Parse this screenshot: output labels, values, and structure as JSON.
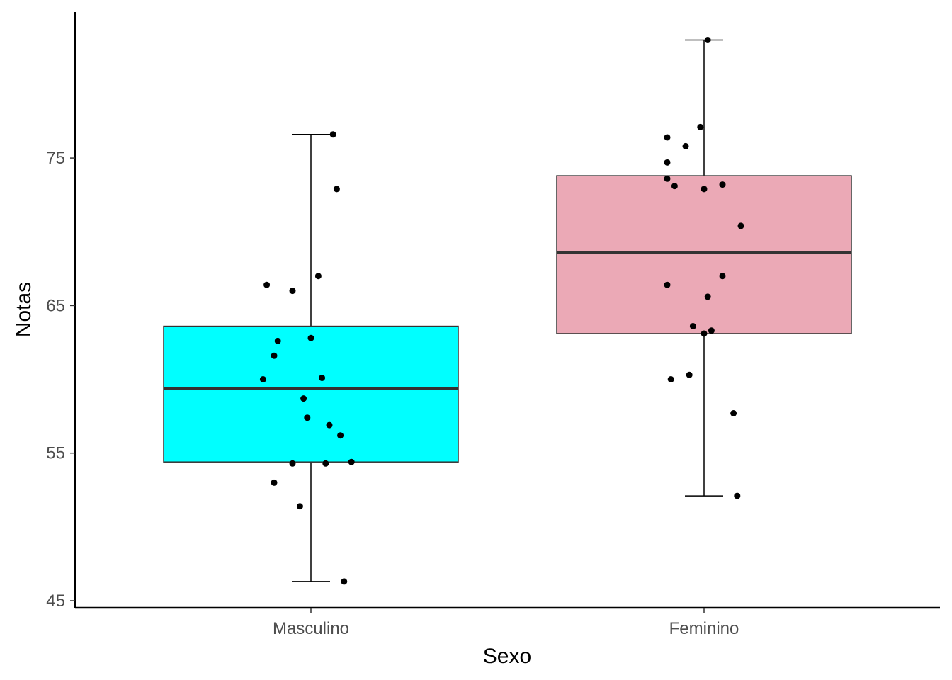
{
  "chart_data": {
    "type": "boxplot",
    "xlabel": "Sexo",
    "ylabel": "Notas",
    "ylim": [
      45,
      85
    ],
    "yticks": [
      45,
      55,
      65,
      75
    ],
    "grid": false,
    "legend": "none",
    "categories": [
      "Masculino",
      "Feminino"
    ],
    "boxes": [
      {
        "category": "Masculino",
        "fill": "#00FFFF",
        "q1": 54.4,
        "median": 59.4,
        "q3": 63.6,
        "whisker_low": 46.3,
        "whisker_high": 76.6,
        "points": [
          {
            "x": 0.06,
            "y": 76.6
          },
          {
            "x": 0.07,
            "y": 72.9
          },
          {
            "x": -0.12,
            "y": 66.4
          },
          {
            "x": 0.02,
            "y": 67.0
          },
          {
            "x": -0.05,
            "y": 66.0
          },
          {
            "x": 0.0,
            "y": 62.8
          },
          {
            "x": -0.09,
            "y": 62.6
          },
          {
            "x": -0.1,
            "y": 61.6
          },
          {
            "x": -0.13,
            "y": 60.0
          },
          {
            "x": 0.03,
            "y": 60.1
          },
          {
            "x": -0.02,
            "y": 58.7
          },
          {
            "x": -0.01,
            "y": 57.4
          },
          {
            "x": 0.05,
            "y": 56.9
          },
          {
            "x": 0.08,
            "y": 56.2
          },
          {
            "x": -0.05,
            "y": 54.3
          },
          {
            "x": 0.04,
            "y": 54.3
          },
          {
            "x": 0.11,
            "y": 54.4
          },
          {
            "x": -0.1,
            "y": 53.0
          },
          {
            "x": -0.03,
            "y": 51.4
          },
          {
            "x": 0.09,
            "y": 46.3
          }
        ]
      },
      {
        "category": "Feminino",
        "fill": "#EBA9B6",
        "q1": 63.1,
        "median": 68.6,
        "q3": 73.8,
        "whisker_low": 52.1,
        "whisker_high": 83.0,
        "points": [
          {
            "x": 0.01,
            "y": 83.0
          },
          {
            "x": -0.01,
            "y": 77.1
          },
          {
            "x": -0.1,
            "y": 76.4
          },
          {
            "x": -0.05,
            "y": 75.8
          },
          {
            "x": -0.1,
            "y": 74.7
          },
          {
            "x": -0.1,
            "y": 73.6
          },
          {
            "x": -0.08,
            "y": 73.1
          },
          {
            "x": 0.0,
            "y": 72.9
          },
          {
            "x": 0.05,
            "y": 73.2
          },
          {
            "x": 0.1,
            "y": 70.4
          },
          {
            "x": 0.05,
            "y": 67.0
          },
          {
            "x": -0.1,
            "y": 66.4
          },
          {
            "x": 0.01,
            "y": 65.6
          },
          {
            "x": -0.03,
            "y": 63.6
          },
          {
            "x": 0.0,
            "y": 63.1
          },
          {
            "x": 0.02,
            "y": 63.3
          },
          {
            "x": -0.04,
            "y": 60.3
          },
          {
            "x": -0.09,
            "y": 60.0
          },
          {
            "x": 0.08,
            "y": 57.7
          },
          {
            "x": 0.09,
            "y": 52.1
          }
        ]
      }
    ]
  }
}
